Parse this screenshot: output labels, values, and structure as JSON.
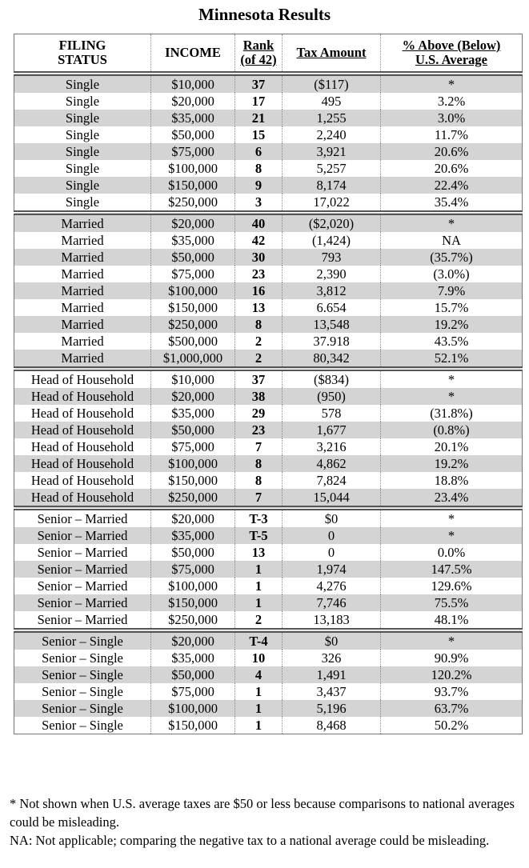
{
  "title": "Minnesota Results",
  "table": {
    "headers": [
      "FILING STATUS",
      "INCOME",
      "Rank (of 42)",
      "Tax Amount",
      "% Above (Below) U.S. Average"
    ],
    "groups": [
      [
        [
          "Single",
          "$10,000",
          "37",
          "($117)",
          "*"
        ],
        [
          "Single",
          "$20,000",
          "17",
          "495",
          "3.2%"
        ],
        [
          "Single",
          "$35,000",
          "21",
          "1,255",
          "3.0%"
        ],
        [
          "Single",
          "$50,000",
          "15",
          "2,240",
          "11.7%"
        ],
        [
          "Single",
          "$75,000",
          "6",
          "3,921",
          "20.6%"
        ],
        [
          "Single",
          "$100,000",
          "8",
          "5,257",
          "20.6%"
        ],
        [
          "Single",
          "$150,000",
          "9",
          "8,174",
          "22.4%"
        ],
        [
          "Single",
          "$250,000",
          "3",
          "17,022",
          "35.4%"
        ]
      ],
      [
        [
          "Married",
          "$20,000",
          "40",
          "($2,020)",
          "*"
        ],
        [
          "Married",
          "$35,000",
          "42",
          "(1,424)",
          "NA"
        ],
        [
          "Married",
          "$50,000",
          "30",
          "793",
          "(35.7%)"
        ],
        [
          "Married",
          "$75,000",
          "23",
          "2,390",
          "(3.0%)"
        ],
        [
          "Married",
          "$100,000",
          "16",
          "3,812",
          "7.9%"
        ],
        [
          "Married",
          "$150,000",
          "13",
          "6.654",
          "15.7%"
        ],
        [
          "Married",
          "$250,000",
          "8",
          "13,548",
          "19.2%"
        ],
        [
          "Married",
          "$500,000",
          "2",
          "37.918",
          "43.5%"
        ],
        [
          "Married",
          "$1,000,000",
          "2",
          "80,342",
          "52.1%"
        ]
      ],
      [
        [
          "Head of Household",
          "$10,000",
          "37",
          "($834)",
          "*"
        ],
        [
          "Head of Household",
          "$20,000",
          "38",
          "(950)",
          "*"
        ],
        [
          "Head of Household",
          "$35,000",
          "29",
          "578",
          "(31.8%)"
        ],
        [
          "Head of Household",
          "$50,000",
          "23",
          "1,677",
          "(0.8%)"
        ],
        [
          "Head of Household",
          "$75,000",
          "7",
          "3,216",
          "20.1%"
        ],
        [
          "Head of Household",
          "$100,000",
          "8",
          "4,862",
          "19.2%"
        ],
        [
          "Head of Household",
          "$150,000",
          "8",
          "7,824",
          "18.8%"
        ],
        [
          "Head of Household",
          "$250,000",
          "7",
          "15,044",
          "23.4%"
        ]
      ],
      [
        [
          "Senior – Married",
          "$20,000",
          "T-3",
          "$0",
          "*"
        ],
        [
          "Senior – Married",
          "$35,000",
          "T-5",
          "0",
          "*"
        ],
        [
          "Senior – Married",
          "$50,000",
          "13",
          "0",
          "0.0%"
        ],
        [
          "Senior – Married",
          "$75,000",
          "1",
          "1,974",
          "147.5%"
        ],
        [
          "Senior – Married",
          "$100,000",
          "1",
          "4,276",
          "129.6%"
        ],
        [
          "Senior – Married",
          "$150,000",
          "1",
          "7,746",
          "75.5%"
        ],
        [
          "Senior – Married",
          "$250,000",
          "2",
          "13,183",
          "48.1%"
        ]
      ],
      [
        [
          "Senior – Single",
          "$20,000",
          "T-4",
          "$0",
          "*"
        ],
        [
          "Senior – Single",
          "$35,000",
          "10",
          "326",
          "90.9%"
        ],
        [
          "Senior – Single",
          "$50,000",
          "4",
          "1,491",
          "120.2%"
        ],
        [
          "Senior – Single",
          "$75,000",
          "1",
          "3,437",
          "93.7%"
        ],
        [
          "Senior – Single",
          "$100,000",
          "1",
          "5,196",
          "63.7%"
        ],
        [
          "Senior – Single",
          "$150,000",
          "1",
          "8,468",
          "50.2%"
        ]
      ]
    ]
  },
  "notes": [
    "* Not shown when U.S. average taxes are $50 or less because comparisons to national averages could be misleading.",
    "NA: Not applicable; comparing the negative tax to a national average could be misleading."
  ]
}
